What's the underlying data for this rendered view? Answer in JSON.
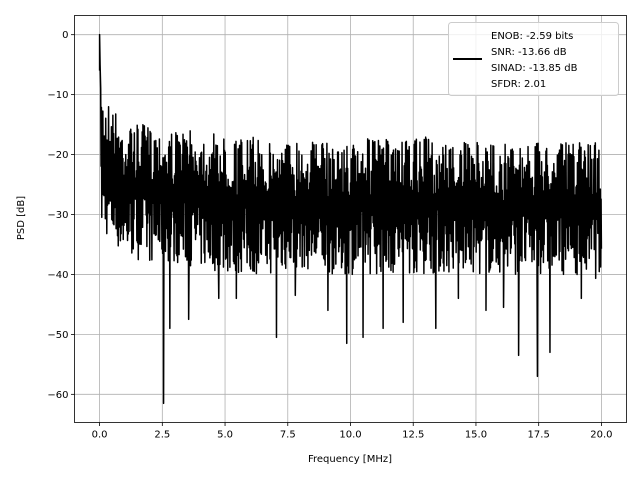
{
  "chart_data": {
    "type": "line",
    "title": "",
    "xlabel": "Frequency [MHz]",
    "ylabel": "PSD [dB]",
    "xlim": [
      -1.0,
      21.0
    ],
    "ylim": [
      -64.7,
      3.2
    ],
    "xticks": [
      0,
      2.5,
      5,
      7.5,
      10,
      12.5,
      15,
      17.5,
      20
    ],
    "xtick_labels": [
      "0.0",
      "2.5",
      "5.0",
      "7.5",
      "10.0",
      "12.5",
      "15.0",
      "17.5",
      "20.0"
    ],
    "yticks": [
      0,
      -10,
      -20,
      -30,
      -40,
      -50,
      -60
    ],
    "ytick_labels": [
      "0",
      "−10",
      "−20",
      "−30",
      "−40",
      "−50",
      "−60"
    ],
    "grid": true,
    "legend": {
      "placement": "top-right",
      "entries": [
        "ENOB: -2.59 bits",
        "SNR: -13.66 dB",
        "SINAD: -13.85 dB",
        "SFDR: 2.01"
      ]
    },
    "series": [
      {
        "name": "PSD",
        "color": "#000000",
        "peak": {
          "x": 0.0,
          "y": 0.0
        },
        "envelope_x": [
          0.1,
          1,
          2,
          3,
          4,
          5,
          6,
          7,
          8,
          9,
          10,
          11,
          12,
          13,
          14,
          15,
          16,
          17,
          18,
          19,
          20
        ],
        "envelope_upper": [
          -9,
          -15,
          -15,
          -16,
          -16,
          -17,
          -17,
          -18,
          -17,
          -18,
          -18,
          -17,
          -18,
          -17,
          -18,
          -18,
          -18,
          -18,
          -18,
          -18,
          -17
        ],
        "envelope_lower": [
          -33,
          -37,
          -38,
          -38,
          -39,
          -40,
          -40,
          -40,
          -39,
          -40,
          -40,
          -40,
          -40,
          -40,
          -40,
          -40,
          -40,
          -40,
          -40,
          -40,
          -41
        ],
        "dips": [
          {
            "x": 2.55,
            "y": -61.5
          },
          {
            "x": 2.8,
            "y": -49
          },
          {
            "x": 3.55,
            "y": -47.5
          },
          {
            "x": 4.75,
            "y": -44
          },
          {
            "x": 5.45,
            "y": -44
          },
          {
            "x": 7.05,
            "y": -50.5
          },
          {
            "x": 7.8,
            "y": -43.5
          },
          {
            "x": 9.1,
            "y": -46
          },
          {
            "x": 9.85,
            "y": -51.5
          },
          {
            "x": 10.5,
            "y": -50.5
          },
          {
            "x": 11.3,
            "y": -49
          },
          {
            "x": 12.1,
            "y": -48
          },
          {
            "x": 13.4,
            "y": -49
          },
          {
            "x": 14.3,
            "y": -44
          },
          {
            "x": 15.4,
            "y": -46
          },
          {
            "x": 16.1,
            "y": -45.5
          },
          {
            "x": 16.7,
            "y": -53.5
          },
          {
            "x": 17.45,
            "y": -57
          },
          {
            "x": 17.95,
            "y": -53
          },
          {
            "x": 19.2,
            "y": -44
          }
        ]
      }
    ]
  }
}
